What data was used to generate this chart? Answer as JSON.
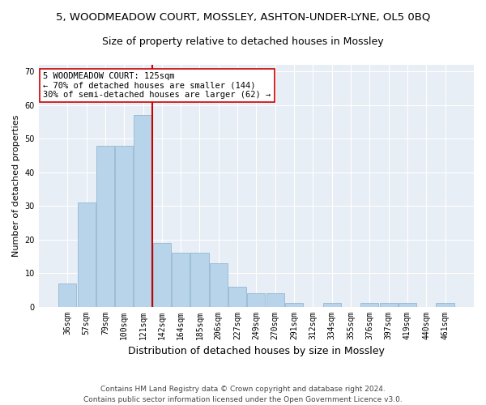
{
  "title_line1": "5, WOODMEADOW COURT, MOSSLEY, ASHTON-UNDER-LYNE, OL5 0BQ",
  "title_line2": "Size of property relative to detached houses in Mossley",
  "xlabel": "Distribution of detached houses by size in Mossley",
  "ylabel": "Number of detached properties",
  "categories": [
    "36sqm",
    "57sqm",
    "79sqm",
    "100sqm",
    "121sqm",
    "142sqm",
    "164sqm",
    "185sqm",
    "206sqm",
    "227sqm",
    "249sqm",
    "270sqm",
    "291sqm",
    "312sqm",
    "334sqm",
    "355sqm",
    "376sqm",
    "397sqm",
    "419sqm",
    "440sqm",
    "461sqm"
  ],
  "values": [
    7,
    31,
    48,
    48,
    57,
    19,
    16,
    16,
    13,
    6,
    4,
    4,
    1,
    0,
    1,
    0,
    1,
    1,
    1,
    0,
    1
  ],
  "bar_color": "#b8d4ea",
  "bar_edge_color": "#8ab0cc",
  "vline_color": "#cc0000",
  "annotation_text": "5 WOODMEADOW COURT: 125sqm\n← 70% of detached houses are smaller (144)\n30% of semi-detached houses are larger (62) →",
  "annotation_box_color": "white",
  "annotation_box_edge": "#cc0000",
  "ylim": [
    0,
    72
  ],
  "yticks": [
    0,
    10,
    20,
    30,
    40,
    50,
    60,
    70
  ],
  "plot_background": "#e8eef5",
  "footer_line1": "Contains HM Land Registry data © Crown copyright and database right 2024.",
  "footer_line2": "Contains public sector information licensed under the Open Government Licence v3.0.",
  "title_fontsize": 9.5,
  "subtitle_fontsize": 9,
  "xlabel_fontsize": 9,
  "ylabel_fontsize": 8,
  "tick_fontsize": 7,
  "annotation_fontsize": 7.5,
  "footer_fontsize": 6.5
}
